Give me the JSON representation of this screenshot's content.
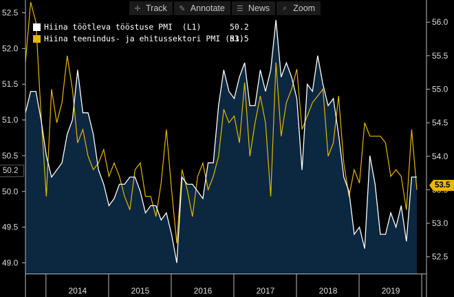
{
  "toolbar": {
    "items": [
      {
        "label": "Track",
        "icon": "crosshair-icon"
      },
      {
        "label": "Annotate",
        "icon": "pencil-icon"
      },
      {
        "label": "News",
        "icon": "news-icon"
      },
      {
        "label": "Zoom",
        "icon": "magnifier-icon"
      }
    ]
  },
  "colors": {
    "background": "#000000",
    "area_fill": "#0c2740",
    "left_series": "#ffffff",
    "right_series": "#e8b800"
  },
  "legend": [
    {
      "name": "Hiina töötleva tööstuse PMI  (L1)",
      "value": "50.2",
      "color": "#ffffff"
    },
    {
      "name": "Hiina teenindus- ja ehitussektori PMI (R1)",
      "value": "53.5",
      "color": "#e8b800"
    }
  ],
  "tags": {
    "left_last": "50.2",
    "right_last": "53.5"
  },
  "chart_data": {
    "type": "line",
    "x_labels": [
      "2014",
      "2015",
      "2016",
      "2017",
      "2018",
      "2019"
    ],
    "x_range": [
      "2013-09",
      "2019-12"
    ],
    "y_left": {
      "ticks": [
        "49.0",
        "49.5",
        "50.0",
        "50.5",
        "51.0",
        "51.5",
        "52.0",
        "52.5"
      ],
      "range": [
        48.85,
        52.65
      ]
    },
    "y_right": {
      "ticks": [
        "52.5",
        "53.0",
        "53.5",
        "54.0",
        "54.5",
        "55.0",
        "55.5",
        "56.0"
      ],
      "range": [
        52.25,
        56.3
      ]
    },
    "series": [
      {
        "name": "Hiina töötleva tööstuse PMI",
        "axis": "left",
        "style": "area",
        "color": "#ffffff",
        "values": [
          [
            "2013-09",
            51.1
          ],
          [
            "2013-10",
            51.4
          ],
          [
            "2013-11",
            51.4
          ],
          [
            "2013-12",
            51.0
          ],
          [
            "2014-01",
            50.5
          ],
          [
            "2014-02",
            50.2
          ],
          [
            "2014-03",
            50.3
          ],
          [
            "2014-04",
            50.4
          ],
          [
            "2014-05",
            50.8
          ],
          [
            "2014-06",
            51.0
          ],
          [
            "2014-07",
            51.7
          ],
          [
            "2014-08",
            51.1
          ],
          [
            "2014-09",
            51.1
          ],
          [
            "2014-10",
            50.8
          ],
          [
            "2014-11",
            50.3
          ],
          [
            "2014-12",
            50.1
          ],
          [
            "2015-01",
            49.8
          ],
          [
            "2015-02",
            49.9
          ],
          [
            "2015-03",
            50.1
          ],
          [
            "2015-04",
            50.1
          ],
          [
            "2015-05",
            50.2
          ],
          [
            "2015-06",
            50.2
          ],
          [
            "2015-07",
            50.0
          ],
          [
            "2015-08",
            49.7
          ],
          [
            "2015-09",
            49.8
          ],
          [
            "2015-10",
            49.8
          ],
          [
            "2015-11",
            49.6
          ],
          [
            "2015-12",
            49.7
          ],
          [
            "2016-01",
            49.4
          ],
          [
            "2016-02",
            49.0
          ],
          [
            "2016-03",
            50.2
          ],
          [
            "2016-04",
            50.1
          ],
          [
            "2016-05",
            50.1
          ],
          [
            "2016-06",
            50.0
          ],
          [
            "2016-07",
            49.9
          ],
          [
            "2016-08",
            50.4
          ],
          [
            "2016-09",
            50.4
          ],
          [
            "2016-10",
            51.2
          ],
          [
            "2016-11",
            51.7
          ],
          [
            "2016-12",
            51.4
          ],
          [
            "2017-01",
            51.3
          ],
          [
            "2017-02",
            51.6
          ],
          [
            "2017-03",
            51.8
          ],
          [
            "2017-04",
            51.2
          ],
          [
            "2017-05",
            51.2
          ],
          [
            "2017-06",
            51.7
          ],
          [
            "2017-07",
            51.4
          ],
          [
            "2017-08",
            51.7
          ],
          [
            "2017-09",
            52.4
          ],
          [
            "2017-10",
            51.6
          ],
          [
            "2017-11",
            51.8
          ],
          [
            "2017-12",
            51.6
          ],
          [
            "2018-01",
            51.3
          ],
          [
            "2018-02",
            50.3
          ],
          [
            "2018-03",
            51.5
          ],
          [
            "2018-04",
            51.4
          ],
          [
            "2018-05",
            51.9
          ],
          [
            "2018-06",
            51.5
          ],
          [
            "2018-07",
            51.2
          ],
          [
            "2018-08",
            51.3
          ],
          [
            "2018-09",
            50.8
          ],
          [
            "2018-10",
            50.2
          ],
          [
            "2018-11",
            50.0
          ],
          [
            "2018-12",
            49.4
          ],
          [
            "2019-01",
            49.5
          ],
          [
            "2019-02",
            49.2
          ],
          [
            "2019-03",
            50.5
          ],
          [
            "2019-04",
            50.1
          ],
          [
            "2019-05",
            49.4
          ],
          [
            "2019-06",
            49.4
          ],
          [
            "2019-07",
            49.7
          ],
          [
            "2019-08",
            49.5
          ],
          [
            "2019-09",
            49.8
          ],
          [
            "2019-10",
            49.3
          ],
          [
            "2019-11",
            50.2
          ],
          [
            "2019-12",
            50.2
          ]
        ]
      },
      {
        "name": "Hiina teenindus- ja ehitussektori PMI",
        "axis": "right",
        "style": "line",
        "color": "#e8b800",
        "values": [
          [
            "2013-09",
            55.4
          ],
          [
            "2013-10",
            56.3
          ],
          [
            "2013-11",
            56.0
          ],
          [
            "2013-12",
            54.6
          ],
          [
            "2014-01",
            53.4
          ],
          [
            "2014-02",
            55.0
          ],
          [
            "2014-03",
            54.5
          ],
          [
            "2014-04",
            54.8
          ],
          [
            "2014-05",
            55.5
          ],
          [
            "2014-06",
            55.0
          ],
          [
            "2014-07",
            54.2
          ],
          [
            "2014-08",
            54.4
          ],
          [
            "2014-09",
            54.0
          ],
          [
            "2014-10",
            53.8
          ],
          [
            "2014-11",
            53.9
          ],
          [
            "2014-12",
            54.1
          ],
          [
            "2015-01",
            53.7
          ],
          [
            "2015-02",
            53.9
          ],
          [
            "2015-03",
            53.7
          ],
          [
            "2015-04",
            53.4
          ],
          [
            "2015-05",
            53.2
          ],
          [
            "2015-06",
            53.8
          ],
          [
            "2015-07",
            53.9
          ],
          [
            "2015-08",
            53.4
          ],
          [
            "2015-09",
            53.4
          ],
          [
            "2015-10",
            53.1
          ],
          [
            "2015-11",
            53.6
          ],
          [
            "2015-12",
            54.4
          ],
          [
            "2016-01",
            53.5
          ],
          [
            "2016-02",
            52.7
          ],
          [
            "2016-03",
            53.8
          ],
          [
            "2016-04",
            53.5
          ],
          [
            "2016-05",
            53.1
          ],
          [
            "2016-06",
            53.7
          ],
          [
            "2016-07",
            53.9
          ],
          [
            "2016-08",
            53.5
          ],
          [
            "2016-09",
            53.7
          ],
          [
            "2016-10",
            54.0
          ],
          [
            "2016-11",
            54.7
          ],
          [
            "2016-12",
            54.5
          ],
          [
            "2017-01",
            54.6
          ],
          [
            "2017-02",
            54.2
          ],
          [
            "2017-03",
            55.1
          ],
          [
            "2017-04",
            54.0
          ],
          [
            "2017-05",
            54.5
          ],
          [
            "2017-06",
            54.9
          ],
          [
            "2017-07",
            54.5
          ],
          [
            "2017-08",
            53.4
          ],
          [
            "2017-09",
            55.4
          ],
          [
            "2017-10",
            54.3
          ],
          [
            "2017-11",
            54.8
          ],
          [
            "2017-12",
            55.0
          ],
          [
            "2018-01",
            55.3
          ],
          [
            "2018-02",
            54.4
          ],
          [
            "2018-03",
            54.6
          ],
          [
            "2018-04",
            54.8
          ],
          [
            "2018-05",
            54.9
          ],
          [
            "2018-06",
            55.0
          ],
          [
            "2018-07",
            54.0
          ],
          [
            "2018-08",
            54.2
          ],
          [
            "2018-09",
            54.9
          ],
          [
            "2018-10",
            53.9
          ],
          [
            "2018-11",
            53.4
          ],
          [
            "2018-12",
            53.8
          ],
          [
            "2019-01",
            53.6
          ],
          [
            "2019-02",
            54.5
          ],
          [
            "2019-03",
            54.3
          ],
          [
            "2019-04",
            54.3
          ],
          [
            "2019-05",
            54.3
          ],
          [
            "2019-06",
            54.2
          ],
          [
            "2019-07",
            53.7
          ],
          [
            "2019-08",
            53.8
          ],
          [
            "2019-09",
            53.7
          ],
          [
            "2019-10",
            53.2
          ],
          [
            "2019-11",
            54.4
          ],
          [
            "2019-12",
            53.5
          ]
        ]
      }
    ],
    "grid": false
  }
}
